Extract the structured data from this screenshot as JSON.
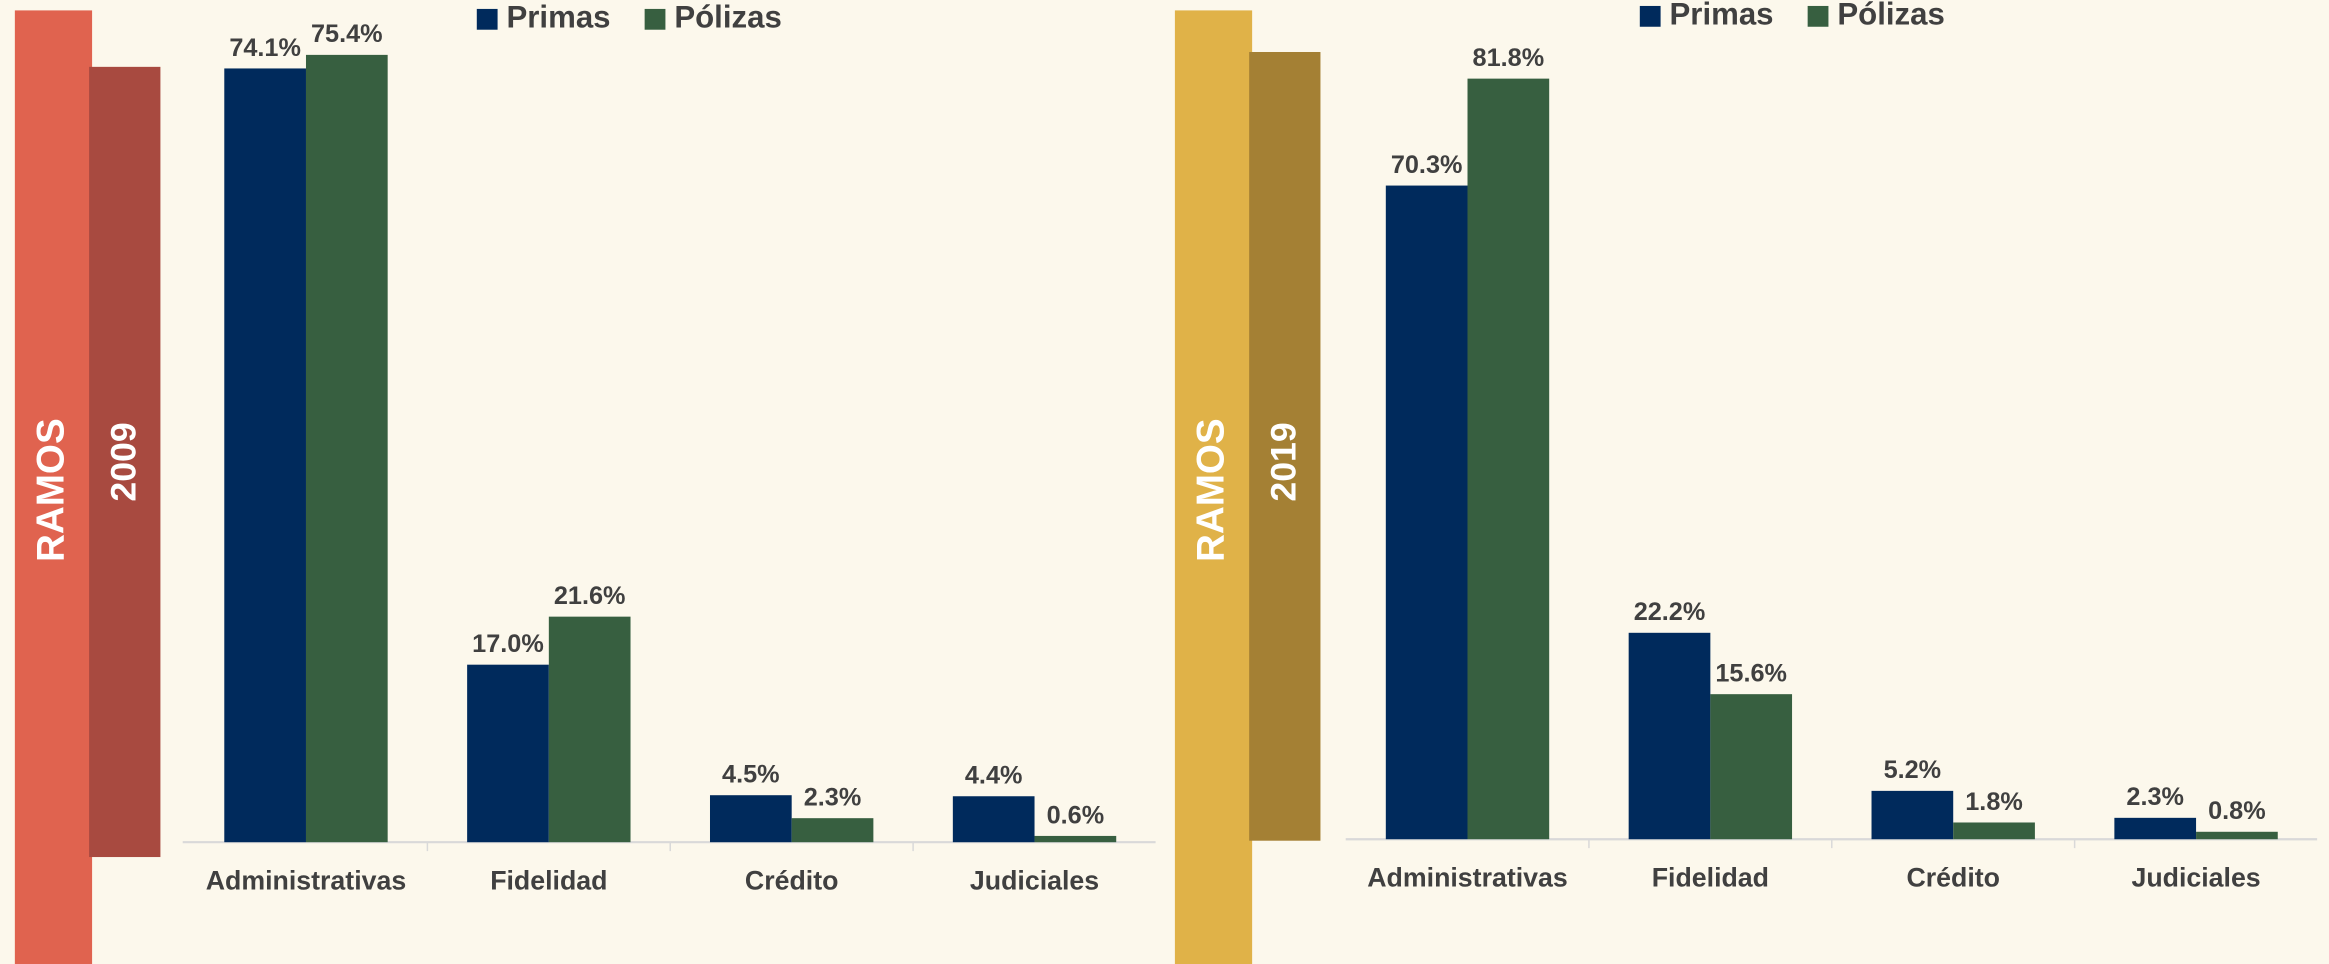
{
  "chart_data": [
    {
      "type": "bar",
      "side_title": "RAMOS",
      "subtitle": "2009",
      "categories": [
        "Administrativas",
        "Fidelidad",
        "Crédito",
        "Judiciales"
      ],
      "series": [
        {
          "name": "Primas",
          "color": "#002a5c",
          "values": [
            74.1,
            17.0,
            4.5,
            4.4
          ],
          "value_labels": [
            "74.1%",
            "17.0%",
            "4.5%",
            "4.4%"
          ]
        },
        {
          "name": "Pólizas",
          "color": "#375f40",
          "values": [
            75.4,
            21.6,
            2.3,
            0.6
          ],
          "value_labels": [
            "75.4%",
            "21.6%",
            "2.3%",
            "0.6%"
          ]
        }
      ]
    },
    {
      "type": "bar",
      "side_title": "RAMOS",
      "subtitle": "2019",
      "categories": [
        "Administrativas",
        "Fidelidad",
        "Crédito",
        "Judiciales"
      ],
      "series": [
        {
          "name": "Primas",
          "color": "#002a5c",
          "values": [
            70.3,
            22.2,
            5.2,
            2.3
          ],
          "value_labels": [
            "70.3%",
            "22.2%",
            "5.2%",
            "2.3%"
          ]
        },
        {
          "name": "Pólizas",
          "color": "#375f40",
          "values": [
            81.8,
            15.6,
            1.8,
            0.8
          ],
          "value_labels": [
            "81.8%",
            "15.6%",
            "1.8%",
            "0.8%"
          ]
        }
      ]
    }
  ]
}
